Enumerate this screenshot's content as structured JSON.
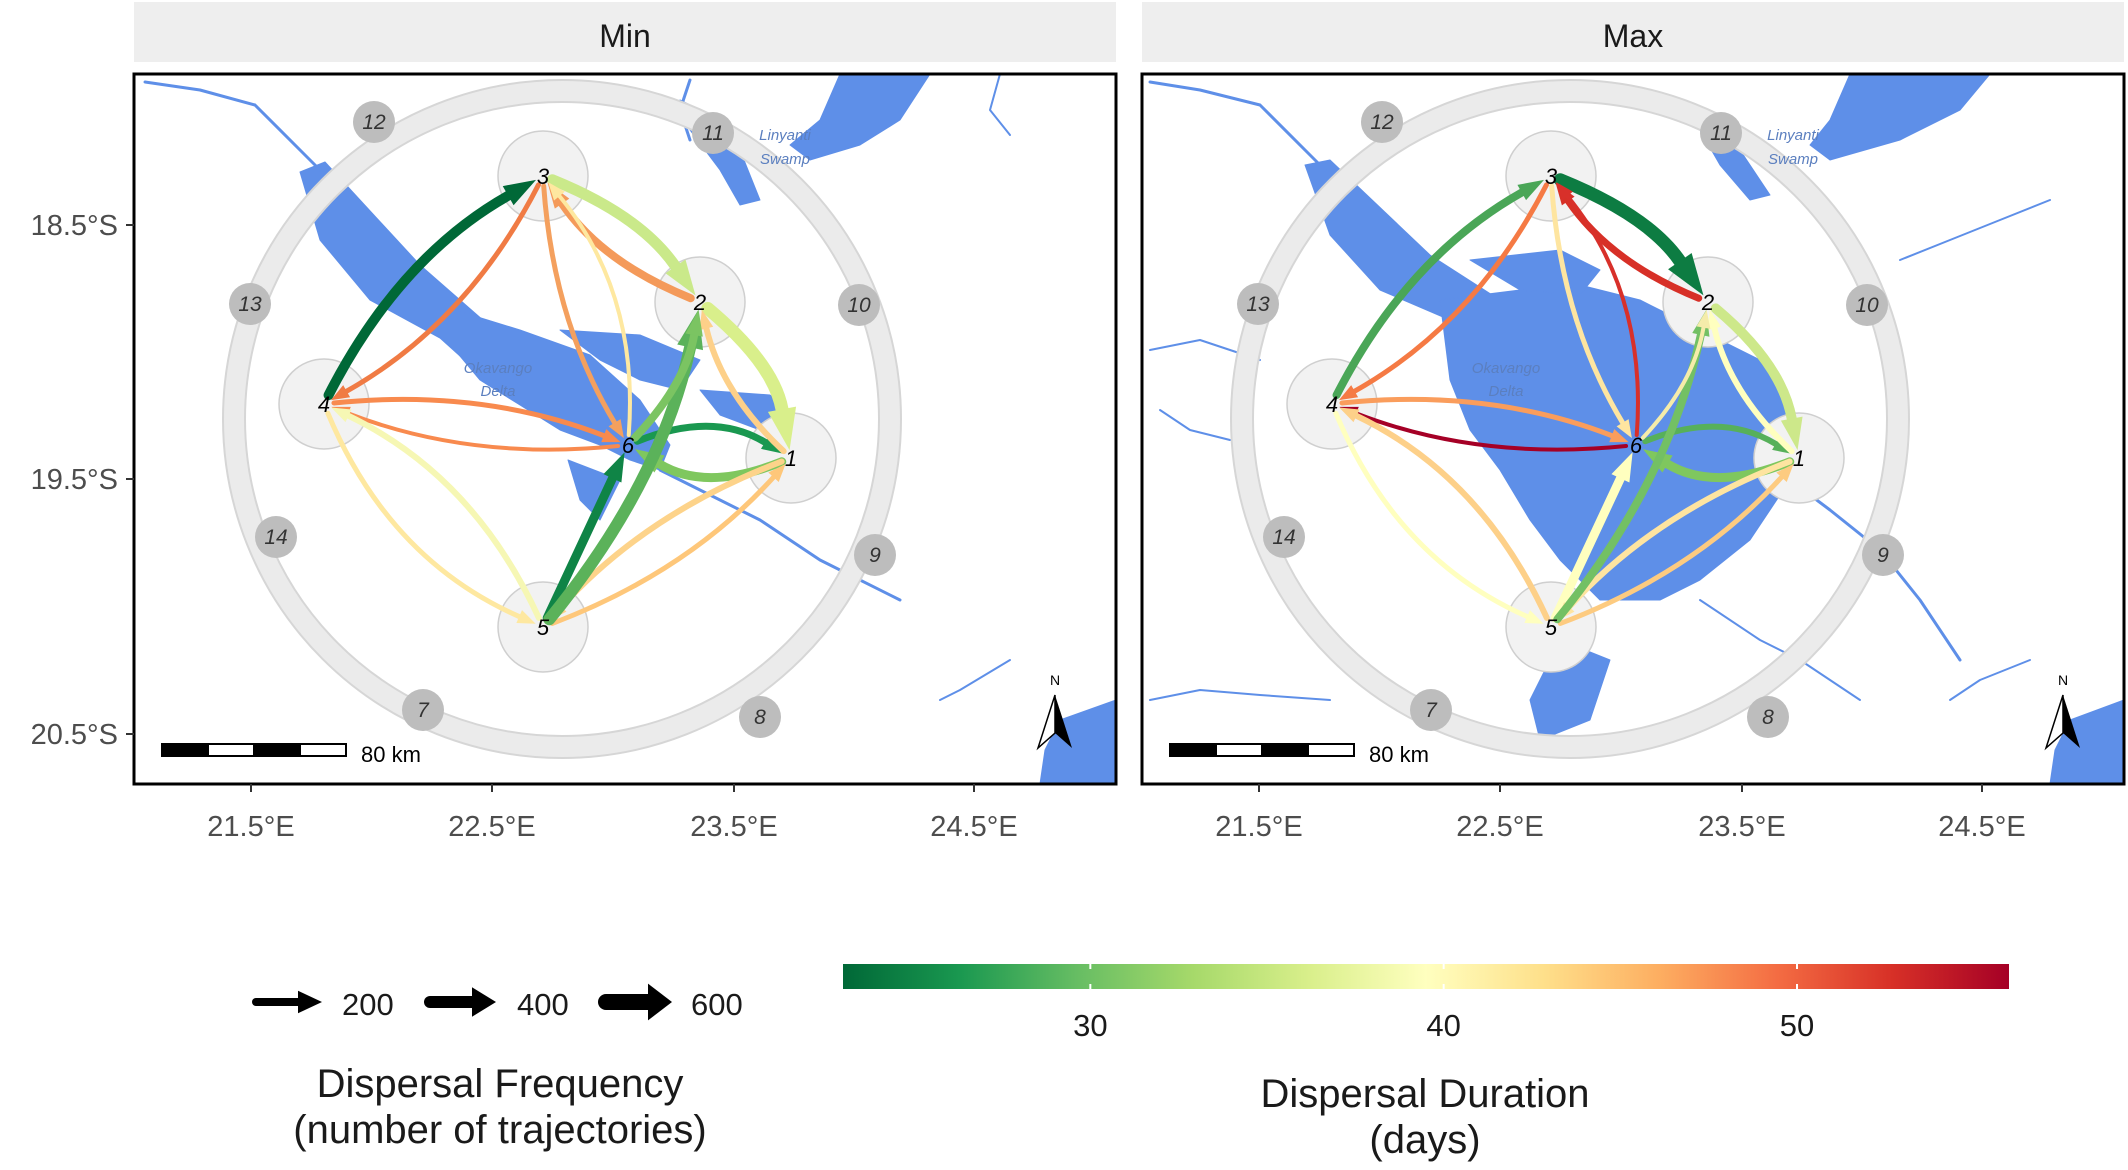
{
  "panels": [
    {
      "title": "Min",
      "widths": [
        7,
        9,
        11,
        8,
        5,
        10,
        13,
        6,
        5,
        4,
        5,
        4,
        5,
        6,
        9,
        5,
        6,
        12,
        8
      ],
      "colors": [
        "#1a9850",
        "#7fc75e",
        "#cae98a",
        "#f49a5a",
        "#f07b44",
        "#006837",
        "#d9ef8b",
        "#fdd089",
        "#f4a05e",
        "#fee8a0",
        "#f88a4e",
        "#f88a4e",
        "#fee8a0",
        "#f6f7b4",
        "#0f8446",
        "#fec77a",
        "#fdd38a",
        "#5bb25a",
        "#7bc462"
      ]
    },
    {
      "title": "Max",
      "widths": [
        6,
        9,
        13,
        7,
        5,
        8,
        10,
        6,
        5,
        4,
        5,
        4,
        5,
        6,
        9,
        5,
        6,
        8,
        4
      ],
      "colors": [
        "#57b05a",
        "#7fc75e",
        "#0d7c42",
        "#d73027",
        "#f57a44",
        "#4aa657",
        "#cde88a",
        "#ffffbf",
        "#fee5a0",
        "#d8302a",
        "#fa9d5c",
        "#a50026",
        "#ffffbf",
        "#fdd089",
        "#ffffbf",
        "#fdcb80",
        "#fee4a0",
        "#73c064",
        "#f5ecaa"
      ]
    }
  ],
  "map": {
    "lat_ticks": [
      "18.5°S",
      "19.5°S",
      "20.5°S"
    ],
    "lon_ticks": [
      "21.5°E",
      "22.5°E",
      "23.5°E",
      "24.5°E"
    ],
    "inner_nodes": [
      "1",
      "2",
      "3",
      "4",
      "5",
      "6"
    ],
    "outer_nodes": [
      "8",
      "7",
      "14",
      "13",
      "12",
      "11",
      "10",
      "9"
    ],
    "place_names": [
      "Linyanti",
      "Swamp",
      "Okavango",
      "Delta"
    ],
    "scale_label": "80 km",
    "north_label": "N"
  },
  "legend_frequency": {
    "title_line1": "Dispersal Frequency",
    "title_line2": "(number of trajectories)",
    "labels": [
      "200",
      "400",
      "600"
    ],
    "values": [
      200,
      400,
      600
    ]
  },
  "legend_duration": {
    "title_line1": "Dispersal Duration",
    "title_line2": "(days)",
    "tick_labels": [
      "30",
      "40",
      "50"
    ],
    "ticks": [
      30,
      40,
      50
    ],
    "range": [
      23,
      56
    ],
    "gradient": [
      "#006837",
      "#1a9850",
      "#66bd63",
      "#a6d96a",
      "#d9ef8b",
      "#ffffbf",
      "#fee08b",
      "#fdae61",
      "#f46d43",
      "#d73027",
      "#a50026"
    ]
  },
  "colors": {
    "water": "#5e8fe8",
    "strip_bg": "#eeeeee",
    "ring": "#ebebeb",
    "node_gray": "#bdbdbd",
    "node_light": "#f2f2f2"
  }
}
